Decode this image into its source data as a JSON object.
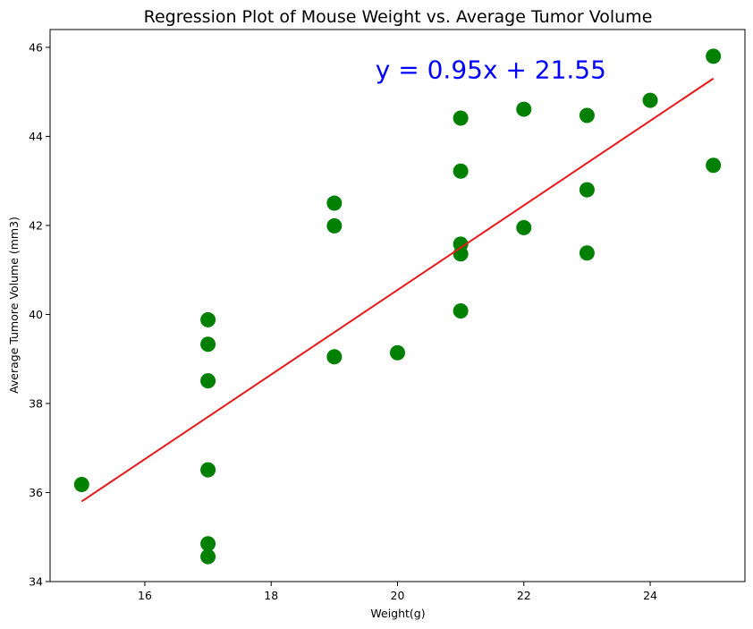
{
  "chart_data": {
    "type": "scatter",
    "title": "Regression Plot of Mouse Weight vs. Average Tumor Volume",
    "xlabel": "Weight(g)",
    "ylabel": "Average Tumore Volume (mm3)",
    "xlim": [
      14.5,
      25.5
    ],
    "ylim": [
      34,
      46.4
    ],
    "xticks": [
      16,
      18,
      20,
      22,
      24
    ],
    "yticks": [
      34,
      36,
      38,
      40,
      42,
      44,
      46
    ],
    "grid": false,
    "points": [
      {
        "x": 15,
        "y": 36.18
      },
      {
        "x": 17,
        "y": 39.88
      },
      {
        "x": 17,
        "y": 39.33
      },
      {
        "x": 17,
        "y": 38.51
      },
      {
        "x": 17,
        "y": 36.51
      },
      {
        "x": 17,
        "y": 34.85
      },
      {
        "x": 17,
        "y": 34.56
      },
      {
        "x": 19,
        "y": 42.5
      },
      {
        "x": 19,
        "y": 41.99
      },
      {
        "x": 19,
        "y": 39.05
      },
      {
        "x": 20,
        "y": 39.14
      },
      {
        "x": 21,
        "y": 44.41
      },
      {
        "x": 21,
        "y": 43.22
      },
      {
        "x": 21,
        "y": 41.58
      },
      {
        "x": 21,
        "y": 41.36
      },
      {
        "x": 21,
        "y": 40.08
      },
      {
        "x": 22,
        "y": 44.61
      },
      {
        "x": 22,
        "y": 41.95
      },
      {
        "x": 23,
        "y": 44.47
      },
      {
        "x": 23,
        "y": 42.8
      },
      {
        "x": 23,
        "y": 41.38
      },
      {
        "x": 24,
        "y": 44.81
      },
      {
        "x": 25,
        "y": 45.8
      },
      {
        "x": 25,
        "y": 43.35
      }
    ],
    "regression": {
      "slope": 0.95,
      "intercept": 21.55,
      "x_range": [
        15,
        25
      ]
    },
    "annotation": {
      "text": "y = 0.95x + 21.55",
      "x": 19.65,
      "y": 45.3
    },
    "colors": {
      "points": "#008000",
      "line": "#e81818",
      "annotation": "#0000ff"
    }
  }
}
